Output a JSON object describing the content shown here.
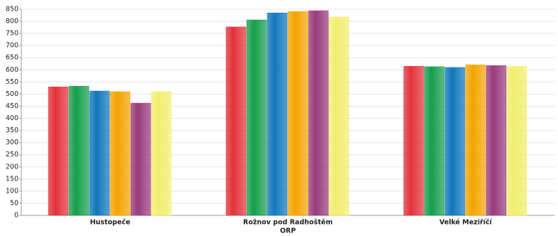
{
  "chart_data": {
    "type": "bar",
    "x_label": "ORP",
    "categories": [
      "Hustopeče",
      "Rožnov pod Radhoštěm",
      "Velké Meziříčí"
    ],
    "series": [
      {
        "color": "#e3313a",
        "values": [
          530,
          777,
          615
        ]
      },
      {
        "color": "#169e4c",
        "values": [
          533,
          806,
          613
        ]
      },
      {
        "color": "#1177bd",
        "values": [
          513,
          835,
          610
        ]
      },
      {
        "color": "#f4a400",
        "values": [
          510,
          841,
          621
        ]
      },
      {
        "color": "#993a7c",
        "values": [
          463,
          844,
          618
        ]
      },
      {
        "color": "#f2ee6e",
        "values": [
          510,
          818,
          615
        ]
      }
    ],
    "ylim": [
      0,
      850
    ],
    "yticks": [
      0,
      50,
      100,
      150,
      200,
      250,
      300,
      350,
      400,
      450,
      500,
      550,
      600,
      650,
      700,
      750,
      800,
      850
    ],
    "grid": true
  }
}
